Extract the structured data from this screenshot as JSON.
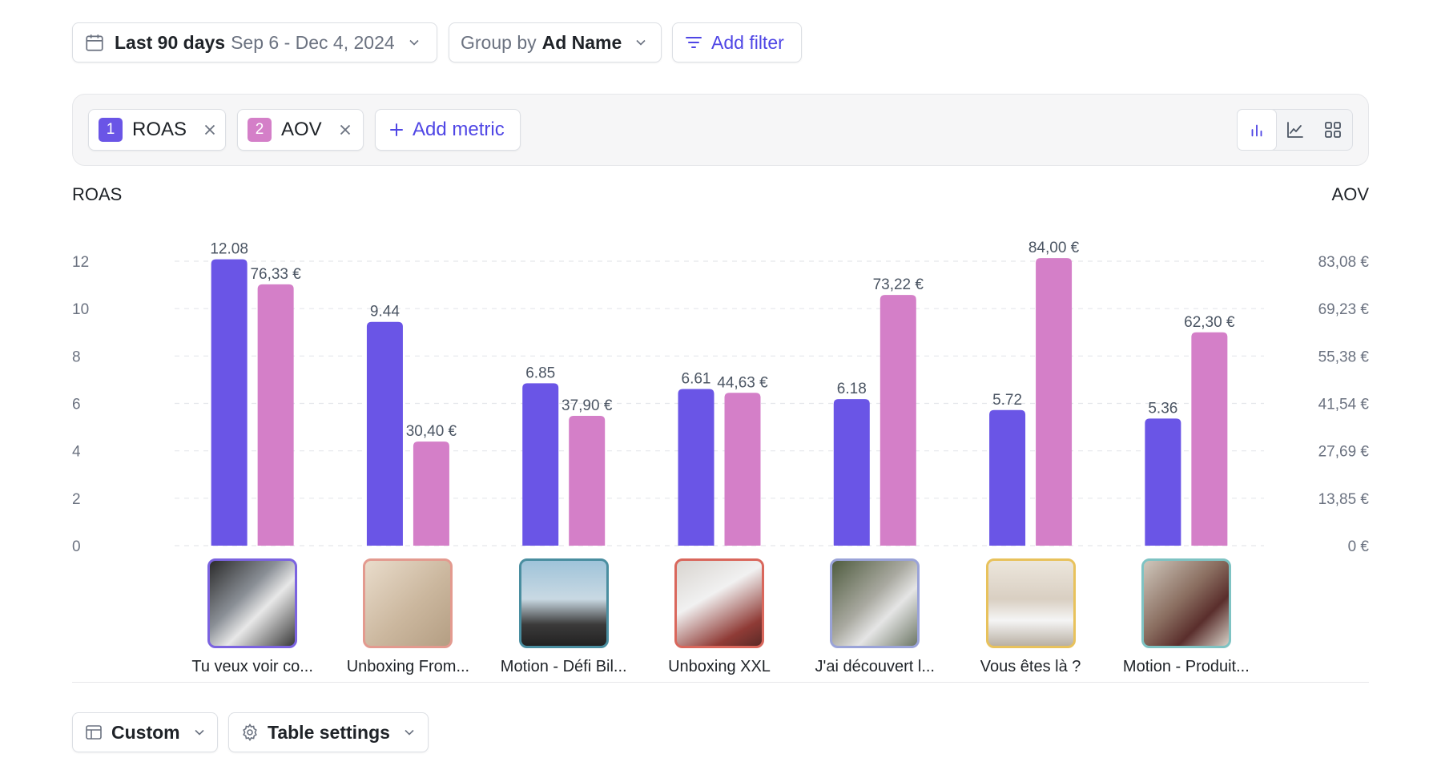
{
  "toolbar": {
    "date_range_label": "Last 90 days",
    "date_range_value": "Sep 6 - Dec 4, 2024",
    "group_by_label": "Group by",
    "group_by_value": "Ad Name",
    "add_filter_label": "Add filter"
  },
  "metrics": [
    {
      "index": "1",
      "name": "ROAS",
      "color": "#6a55e6"
    },
    {
      "index": "2",
      "name": "AOV",
      "color": "#d47fc8"
    }
  ],
  "add_metric_label": "Add metric",
  "view_modes": [
    "bar-chart-icon",
    "line-chart-icon",
    "grid-icon"
  ],
  "active_view": "bar-chart-icon",
  "left_axis_title": "ROAS",
  "right_axis_title": "AOV",
  "chart_data": {
    "type": "bar",
    "categories": [
      "Tu veux voir co...",
      "Unboxing From...",
      "Motion - Défi Bil...",
      "Unboxing XXL",
      "J'ai découvert l...",
      "Vous êtes là ?",
      "Motion - Produit..."
    ],
    "series": [
      {
        "name": "ROAS",
        "axis": "left",
        "color": "#6a55e6",
        "values": [
          12.08,
          9.44,
          6.85,
          6.61,
          6.18,
          5.72,
          5.36
        ],
        "labels": [
          "12.08",
          "9.44",
          "6.85",
          "6.61",
          "6.18",
          "5.72",
          "5.36"
        ]
      },
      {
        "name": "AOV",
        "axis": "right",
        "color": "#d47fc8",
        "values": [
          76.33,
          30.4,
          37.9,
          44.63,
          73.22,
          84.0,
          62.3
        ],
        "labels": [
          "76,33 €",
          "30,40 €",
          "37,90 €",
          "44,63 €",
          "73,22 €",
          "84,00 €",
          "62,30 €"
        ]
      }
    ],
    "left_axis": {
      "title": "ROAS",
      "ylim": [
        0,
        12
      ],
      "ticks": [
        "0",
        "2",
        "4",
        "6",
        "8",
        "10",
        "12"
      ]
    },
    "right_axis": {
      "title": "AOV",
      "ylim": [
        0,
        83.08
      ],
      "ticks": [
        "0 €",
        "13,85 €",
        "27,69 €",
        "41,54 €",
        "55,38 €",
        "69,23 €",
        "83,08 €"
      ]
    },
    "grid": true,
    "thumbnail_border_colors": [
      "#7b63e0",
      "#e39a8f",
      "#4a8ea0",
      "#d9675c",
      "#9aa3d8",
      "#e8c25c",
      "#7ec3c3"
    ]
  },
  "footer": {
    "custom_label": "Custom",
    "table_settings_label": "Table settings"
  }
}
